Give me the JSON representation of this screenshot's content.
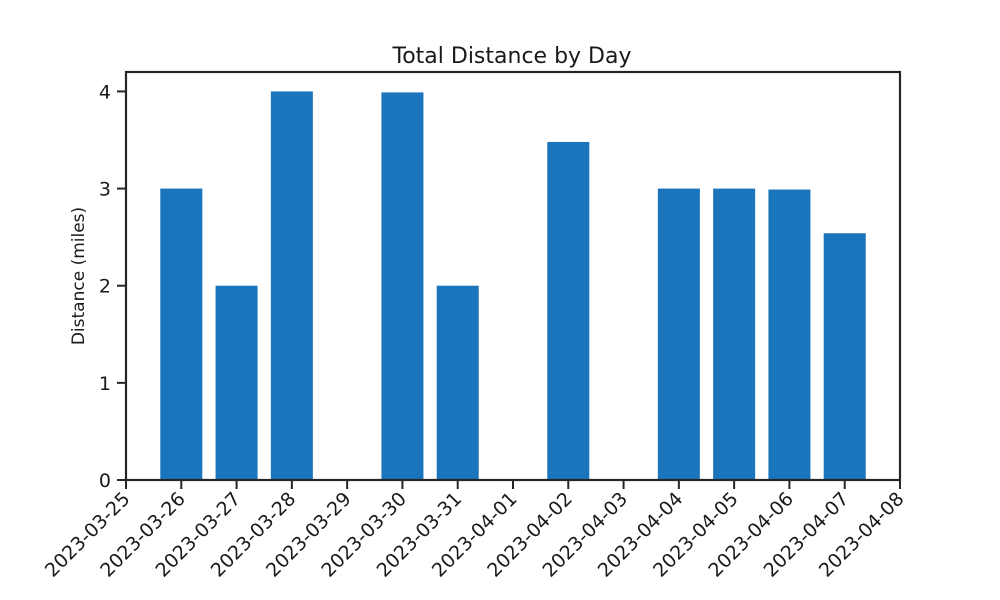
{
  "chart_data": {
    "type": "bar",
    "title": "Total Distance by Day",
    "xlabel": "",
    "ylabel": "Distance (miles)",
    "x_ticks": [
      "2023-03-25",
      "2023-03-26",
      "2023-03-27",
      "2023-03-28",
      "2023-03-29",
      "2023-03-30",
      "2023-03-31",
      "2023-04-01",
      "2023-04-02",
      "2023-04-03",
      "2023-04-04",
      "2023-04-05",
      "2023-04-06",
      "2023-04-07",
      "2023-04-08"
    ],
    "categories": [
      "2023-03-26",
      "2023-03-27",
      "2023-03-28",
      "2023-03-30",
      "2023-03-31",
      "2023-04-02",
      "2023-04-04",
      "2023-04-05",
      "2023-04-06",
      "2023-04-07"
    ],
    "values": [
      3.0,
      2.0,
      4.0,
      3.99,
      2.0,
      3.48,
      3.0,
      3.0,
      2.99,
      2.54
    ],
    "y_ticks": [
      0,
      1,
      2,
      3,
      4
    ],
    "ylim": [
      0,
      4.2
    ],
    "grid": false,
    "colors": {
      "bar": "#1a75bc",
      "axis": "#262626"
    }
  }
}
